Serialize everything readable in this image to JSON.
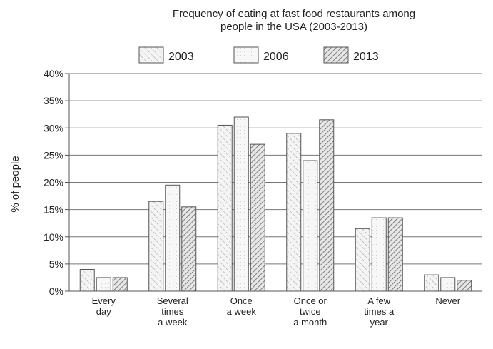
{
  "chart_data": {
    "type": "bar",
    "title_line1": "Frequency of eating at fast food restaurants among",
    "title_line2": "people in the USA (2003-2013)",
    "ylabel": "% of people",
    "xlabel": "",
    "ylim": [
      0,
      40
    ],
    "yticks": [
      "0%",
      "5%",
      "10%",
      "15%",
      "20%",
      "25%",
      "30%",
      "35%",
      "40%"
    ],
    "categories": [
      [
        "Every",
        "day"
      ],
      [
        "Several",
        "times",
        "a week"
      ],
      [
        "Once",
        "a week"
      ],
      [
        "Once or",
        "twice",
        "a month"
      ],
      [
        "A few",
        "times a",
        "year"
      ],
      [
        "Never"
      ]
    ],
    "series": [
      {
        "name": "2003",
        "values": [
          4,
          16.5,
          30.5,
          29,
          11.5,
          3
        ]
      },
      {
        "name": "2006",
        "values": [
          2.5,
          19.5,
          32,
          24,
          13.5,
          2.5
        ]
      },
      {
        "name": "2013",
        "values": [
          2.5,
          15.5,
          27,
          31.5,
          13.5,
          2
        ]
      }
    ],
    "grid": true,
    "legend_position": "top"
  }
}
